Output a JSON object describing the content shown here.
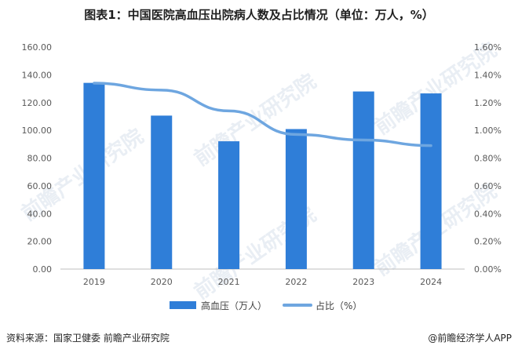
{
  "title": "图表1：中国医院高血压出院病人数及占比情况（单位：万人，%）",
  "footer": {
    "source": "资料来源：国家卫健委  前瞻产业研究院",
    "brand": "@前瞻经济学人APP"
  },
  "watermark": "前瞻产业研究院",
  "colors": {
    "bar": "#2f7ed8",
    "line": "#6ea6e0",
    "axis": "#bfbfbf"
  },
  "chart_data": {
    "type": "bar",
    "categories": [
      "2019",
      "2020",
      "2021",
      "2022",
      "2023",
      "2024"
    ],
    "series": [
      {
        "name": "高血压（万人）",
        "type": "bar",
        "axis": "left",
        "values": [
          134.2,
          110.6,
          92.1,
          100.9,
          128.0,
          126.6
        ]
      },
      {
        "name": "占比（%）",
        "type": "line",
        "axis": "right",
        "values": [
          1.34,
          1.29,
          1.14,
          0.97,
          0.93,
          0.89
        ]
      }
    ],
    "ylim": [
      0,
      160
    ],
    "y2lim": [
      0,
      1.6
    ],
    "yticks": [
      "0.00",
      "20.00",
      "40.00",
      "60.00",
      "80.00",
      "100.00",
      "120.00",
      "140.00",
      "160.00"
    ],
    "y2ticks": [
      "0.00%",
      "0.20%",
      "0.40%",
      "0.60%",
      "0.80%",
      "1.00%",
      "1.20%",
      "1.40%",
      "1.60%"
    ],
    "grid": false,
    "legend": "bottom"
  }
}
